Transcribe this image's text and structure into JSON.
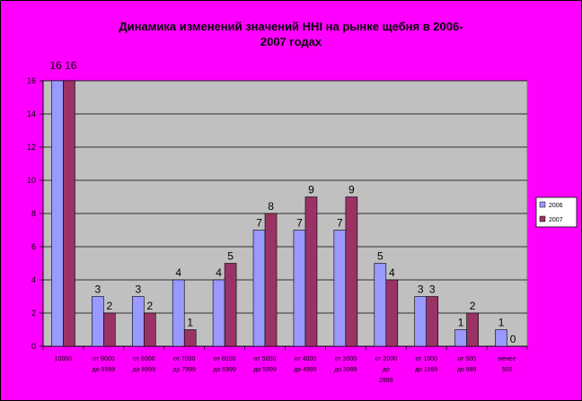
{
  "chart_data": {
    "type": "bar",
    "title_lines": [
      "Динамика изменений значений ННI на рынке щебня в 2006-",
      "2007 годах"
    ],
    "categories": [
      [
        "10000"
      ],
      [
        "от 9000",
        "до 9999"
      ],
      [
        "от 8000",
        "до 8999"
      ],
      [
        "от 7000",
        "до 7999"
      ],
      [
        "от 6000",
        "до 6999"
      ],
      [
        "от 5000",
        "до 5999"
      ],
      [
        "от 4000",
        "до 4999"
      ],
      [
        "от 3000",
        "до 3999"
      ],
      [
        "от 2000",
        "до",
        "2999"
      ],
      [
        "от 1000",
        "до 1999"
      ],
      [
        "от 500",
        "до 999"
      ],
      [
        "менее",
        "500"
      ]
    ],
    "series": [
      {
        "name": "2006",
        "values": [
          16,
          3,
          3,
          4,
          4,
          7,
          7,
          7,
          5,
          3,
          1,
          1
        ],
        "color": "#9999ff"
      },
      {
        "name": "2007",
        "values": [
          16,
          2,
          2,
          1,
          5,
          8,
          9,
          9,
          4,
          3,
          2,
          0
        ],
        "color": "#993366"
      }
    ],
    "top_labels": [
      "16 16"
    ],
    "ylim": [
      0,
      16
    ],
    "yticks": [
      0,
      2,
      4,
      6,
      8,
      10,
      12,
      14,
      16
    ],
    "grid": true,
    "plot_background": "#c0c0c0",
    "legend_position": "right"
  }
}
